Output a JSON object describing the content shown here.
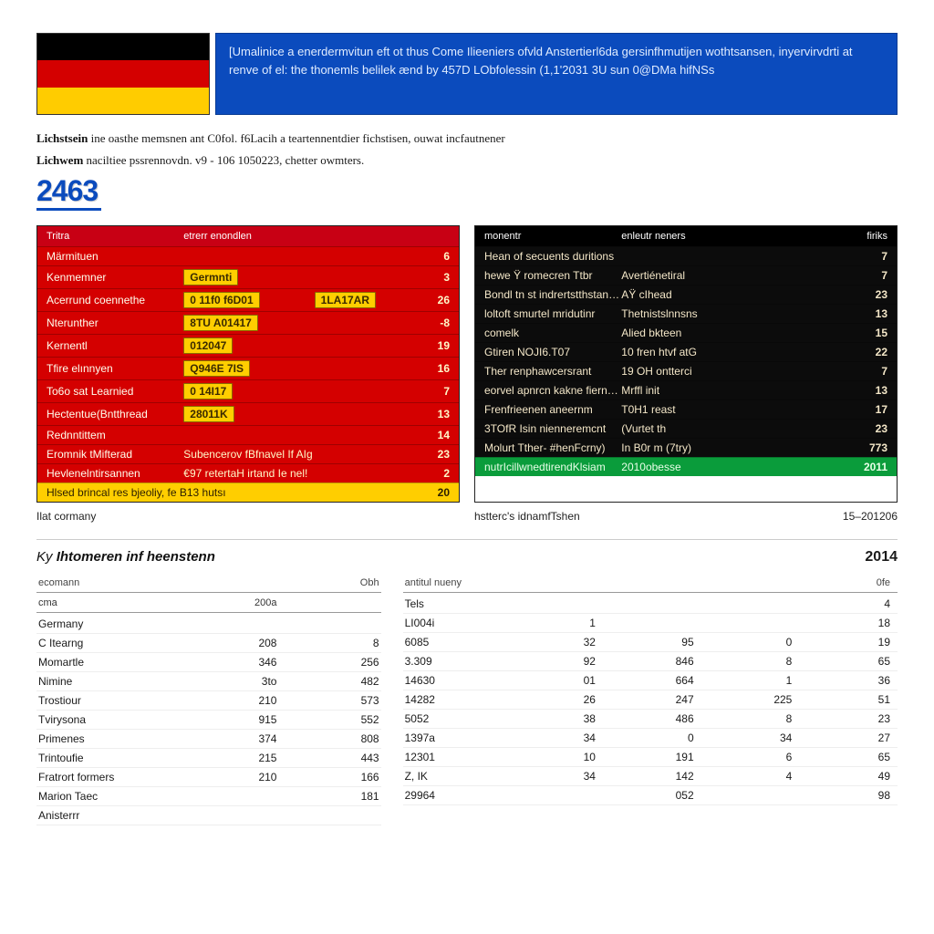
{
  "banner": {
    "text": "[Umalinice a enerdermvitun eft ot thus Come Ilieeniers ofvld Anstertierl6da gersinfhmutijen wothtsansen, inyervirvdrti at renve of el: the thonemls belilek ænd by 457D LObfolessin (1,1'2031 3U sun 0@DMa hifNSs"
  },
  "intro": {
    "line1_bold": "Lichstsein",
    "line1_rest": " ine oasthe memsnen ant C0fol. f6Lacih a teartennentdier fichstisen, ouwat incfautnener",
    "line2_bold": "Lichwem",
    "line2_rest": " naciltiee pssrennovdn. v9 - 106 1050223, chetter owmters.",
    "big_number": "2463"
  },
  "panel_red": {
    "header": [
      "Tritra",
      "etrerr enondlen",
      ""
    ],
    "rows": [
      {
        "c1": "Märmituen",
        "c2": "",
        "c3": "6",
        "gold": false
      },
      {
        "c1": "Kenmemner",
        "c2": "Germnti",
        "c3": "3",
        "gold": true
      },
      {
        "c1": "Acerrund coennethe",
        "c2": "0 11f0 f6D01",
        "c2b": "1LA17AR",
        "c3": "26",
        "gold": true
      },
      {
        "c1": "Nterunther",
        "c2": "8TU A01417",
        "c3": "-8",
        "gold": true
      },
      {
        "c1": "Kernentl",
        "c2": "012047",
        "c3": "19",
        "gold": true
      },
      {
        "c1": "Tfire elınnyen",
        "c2": "Q946E 7IS",
        "c3": "16",
        "gold": true
      },
      {
        "c1": "To6o sat Learnied",
        "c2": "0 14I17",
        "c3": "7",
        "gold": true
      },
      {
        "c1": "Hectentue(Bntthread",
        "c2": "28011K",
        "c3": "13",
        "gold": true
      },
      {
        "c1": "Rednntittem",
        "c2": "",
        "c3": "14",
        "gold": false
      },
      {
        "c1": "Eromnik tMifterad",
        "c2": "Subencerov fBfnavel If AIg",
        "c3": "23",
        "gold": false
      },
      {
        "c1": "Hevlenelntirsannen",
        "c2": "€97 retertaH irtand Ie nel!",
        "c3": "2",
        "gold": false
      }
    ],
    "footer": {
      "c1": "Hlsed brincal res bjeoliy, fe B13 hutsı",
      "c3": "20"
    },
    "caption": "Ilat cormany"
  },
  "panel_black": {
    "header": [
      "monentr",
      "enleutr neners",
      "firiks"
    ],
    "rows": [
      {
        "c1": "Hean of secuents duritions",
        "c2": "",
        "c3": "7"
      },
      {
        "c1": "hewe Ÿ romecren Ttbr",
        "c2": "Avertiénetiral",
        "c3": "7"
      },
      {
        "c1": "Bondl tn st indrertstthstanlem",
        "c2": "AŸ cIhead",
        "c3": "23"
      },
      {
        "c1": "loltoft smurtel mridutinr",
        "c2": "Thetnistslnnsns",
        "c3": "13"
      },
      {
        "c1": "comelk",
        "c2": "Alied bkteen",
        "c3": "15"
      },
      {
        "c1": "Gtiren            NOJI6.T07",
        "c2": "10 fren htvf atG",
        "c3": "22"
      },
      {
        "c1": "Ther renphawcersrant",
        "c2": "19 OH ontterci",
        "c3": "7"
      },
      {
        "c1": "eorvel apnrcn kakne fiernant",
        "c2": "Mrffl init",
        "c3": "13"
      },
      {
        "c1": "Frenfrieenen aneernm",
        "c2": "T0H1 reast",
        "c3": "17"
      },
      {
        "c1": "3TOfR Isin nienneremcnt",
        "c2": "(Vurtet th",
        "c3": "23"
      },
      {
        "c1": "Molurt Tther- #henFcrny)",
        "c2": "In B0r m (7try)",
        "c3": "773"
      }
    ],
    "footer": {
      "c1": "nutrIcillwnedtirendKlsiam",
      "c2": "2010obesse",
      "c3": "2011"
    },
    "caption_l": "hstterc's idnamfTshen",
    "caption_r": "15–201206"
  },
  "section": {
    "title_prefix": "Ky ",
    "title_bold": "Ihtomeren inf heenstenn",
    "year": "2014"
  },
  "table_left": {
    "head": [
      "ecomann",
      "",
      "Obh"
    ],
    "sub": [
      "cma",
      "200a",
      ""
    ],
    "rows": [
      [
        "Germany",
        "",
        ""
      ],
      [
        "C Itearng",
        "208",
        "8"
      ],
      [
        "Momartle",
        "346",
        "256"
      ],
      [
        "Nimine",
        "3to",
        "482"
      ],
      [
        "Trostiour",
        "210",
        "573"
      ],
      [
        "Tvirysona",
        "915",
        "552"
      ],
      [
        "Primenes",
        "374",
        "808"
      ],
      [
        "Trintoufie",
        "215",
        "443"
      ],
      [
        "Fratrort formers",
        "210",
        "166"
      ],
      [
        "Marion Taec",
        "",
        "181"
      ],
      [
        "Anisterrr",
        "",
        ""
      ]
    ]
  },
  "table_right": {
    "head": [
      "antitul nueny",
      "",
      "",
      "",
      "0fe"
    ],
    "rows": [
      [
        "Tels",
        "",
        "",
        "",
        "4"
      ],
      [
        "LI004i",
        "1",
        "",
        "",
        "18"
      ],
      [
        "6085",
        "32",
        "95",
        "0",
        "19"
      ],
      [
        "3.309",
        "92",
        "846",
        "8",
        "65"
      ],
      [
        "14630",
        "01",
        "664",
        "1",
        "36"
      ],
      [
        "14282",
        "26",
        "247",
        "225",
        "51"
      ],
      [
        "5052",
        "38",
        "486",
        "8",
        "23"
      ],
      [
        "1397a",
        "34",
        "0",
        "34",
        "27"
      ],
      [
        "12301",
        "10",
        "191",
        "6",
        "65"
      ],
      [
        "Z, IK",
        "34",
        "142",
        "4",
        "49"
      ],
      [
        "29964",
        "",
        "052",
        "",
        "98"
      ]
    ]
  },
  "colors": {
    "blue": "#0b4bbd",
    "red": "#d40000",
    "red_dark": "#c80014",
    "gold": "#ffce00",
    "green": "#0a9c3b",
    "black": "#000000"
  }
}
